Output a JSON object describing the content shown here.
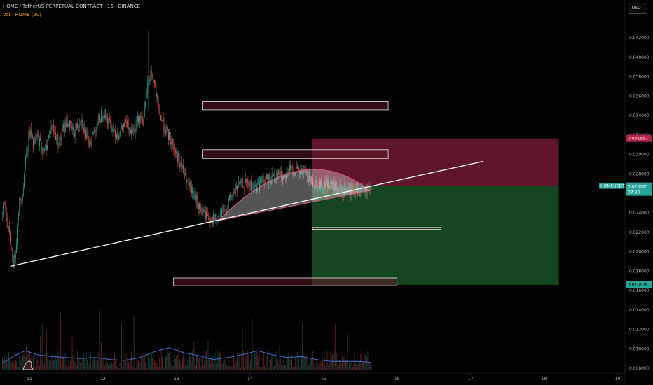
{
  "header": {
    "title": "HOME / TetherUS PERPETUAL CONTRACT · 15 · BINANCE",
    "volume_label": "Vol · HOME (20)",
    "currency_button": "USDT"
  },
  "colors": {
    "background": "#000000",
    "axis_text": "#b2b5be",
    "stop_zone": "#7f1d36",
    "target_zone": "#1e5e2a",
    "trendline": "#ffffff",
    "arc": "#e0557a",
    "volume_ma": "#3f6fd8",
    "candle_up": "#26a69a",
    "candle_down": "#ef5350"
  },
  "price_tags": {
    "stop": {
      "value": "0.031657",
      "color": "#b7234a"
    },
    "upper": {
      "value": "0.026791",
      "color": "#3a3d46"
    },
    "entry_symbol": "HOMEUSDT.P",
    "entry_value": "0.026765",
    "entry_timer": "07:20",
    "entry_color": "#26a69a",
    "target": {
      "value": "0.016578",
      "color": "#26a69a"
    }
  },
  "chart_data": {
    "type": "candlestick",
    "title": "HOME / TetherUS PERPETUAL CONTRACT · 15 · BINANCE",
    "x_ticks": [
      "11",
      "12",
      "13",
      "14",
      "15",
      "16",
      "17",
      "18",
      "19"
    ],
    "xlim": [
      10.6,
      19.1
    ],
    "y_ticks": [
      "0.042000",
      "0.040000",
      "0.038000",
      "0.036000",
      "0.034000",
      "0.032000",
      "0.030000",
      "0.028000",
      "0.026000",
      "0.024000",
      "0.022000",
      "0.020000",
      "0.018000",
      "0.016000",
      "0.014000",
      "0.012000",
      "0.010000",
      "0.008000"
    ],
    "ylim": [
      0.0075,
      0.0436
    ],
    "price_path": [
      [
        10.63,
        0.0238
      ],
      [
        10.66,
        0.0252
      ],
      [
        10.7,
        0.0225
      ],
      [
        10.74,
        0.021
      ],
      [
        10.78,
        0.0186
      ],
      [
        10.81,
        0.0205
      ],
      [
        10.85,
        0.0245
      ],
      [
        10.9,
        0.026
      ],
      [
        10.95,
        0.03
      ],
      [
        11.0,
        0.0325
      ],
      [
        11.05,
        0.0308
      ],
      [
        11.1,
        0.0318
      ],
      [
        11.2,
        0.0302
      ],
      [
        11.3,
        0.033
      ],
      [
        11.4,
        0.0312
      ],
      [
        11.5,
        0.0335
      ],
      [
        11.6,
        0.0322
      ],
      [
        11.7,
        0.0338
      ],
      [
        11.8,
        0.031
      ],
      [
        11.9,
        0.0328
      ],
      [
        12.0,
        0.0345
      ],
      [
        12.1,
        0.033
      ],
      [
        12.2,
        0.032
      ],
      [
        12.3,
        0.0332
      ],
      [
        12.4,
        0.0325
      ],
      [
        12.5,
        0.034
      ],
      [
        12.55,
        0.0335
      ],
      [
        12.6,
        0.037
      ],
      [
        12.65,
        0.0385
      ],
      [
        12.7,
        0.0372
      ],
      [
        12.75,
        0.0345
      ],
      [
        12.85,
        0.0325
      ],
      [
        12.95,
        0.031
      ],
      [
        13.05,
        0.029
      ],
      [
        13.15,
        0.027
      ],
      [
        13.25,
        0.0255
      ],
      [
        13.35,
        0.024
      ],
      [
        13.45,
        0.0235
      ],
      [
        13.55,
        0.0232
      ],
      [
        13.65,
        0.0242
      ],
      [
        13.75,
        0.0258
      ],
      [
        13.85,
        0.0268
      ],
      [
        13.95,
        0.027
      ],
      [
        14.05,
        0.0265
      ],
      [
        14.15,
        0.0272
      ],
      [
        14.25,
        0.0275
      ],
      [
        14.35,
        0.028
      ],
      [
        14.45,
        0.0278
      ],
      [
        14.55,
        0.0285
      ],
      [
        14.65,
        0.0282
      ],
      [
        14.75,
        0.028
      ],
      [
        14.85,
        0.0272
      ],
      [
        14.95,
        0.0268
      ],
      [
        15.05,
        0.027
      ],
      [
        15.15,
        0.0266
      ],
      [
        15.25,
        0.0262
      ],
      [
        15.35,
        0.026
      ],
      [
        15.45,
        0.0262
      ],
      [
        15.55,
        0.0264
      ],
      [
        15.65,
        0.0267
      ]
    ],
    "volume_ma": [
      [
        10.63,
        0.0085
      ],
      [
        10.8,
        0.0093
      ],
      [
        10.95,
        0.0098
      ],
      [
        11.1,
        0.0094
      ],
      [
        11.3,
        0.0092
      ],
      [
        11.5,
        0.0091
      ],
      [
        11.7,
        0.009
      ],
      [
        11.9,
        0.0091
      ],
      [
        12.1,
        0.0089
      ],
      [
        12.3,
        0.0088
      ],
      [
        12.5,
        0.0091
      ],
      [
        12.7,
        0.0097
      ],
      [
        12.9,
        0.0101
      ],
      [
        13.1,
        0.0096
      ],
      [
        13.3,
        0.0093
      ],
      [
        13.5,
        0.0089
      ],
      [
        13.7,
        0.0091
      ],
      [
        13.9,
        0.0094
      ],
      [
        14.1,
        0.0098
      ],
      [
        14.3,
        0.0094
      ],
      [
        14.5,
        0.0091
      ],
      [
        14.7,
        0.0092
      ],
      [
        14.9,
        0.0089
      ],
      [
        15.1,
        0.0087
      ],
      [
        15.3,
        0.0087
      ],
      [
        15.5,
        0.0087
      ],
      [
        15.65,
        0.0086
      ]
    ],
    "trendline": {
      "start": [
        10.74,
        0.0185
      ],
      "end": [
        17.17,
        0.0293
      ]
    },
    "arc": {
      "start": [
        13.57,
        0.0232
      ],
      "peak": [
        14.7,
        0.0294
      ],
      "end": [
        15.63,
        0.0263
      ]
    },
    "position": {
      "type": "short",
      "entry": 0.026765,
      "stop": 0.031657,
      "target": 0.016578,
      "x_start": 14.85,
      "x_end": 18.2
    },
    "zones": [
      {
        "x": [
          13.36,
          15.88
        ],
        "y": [
          0.0346,
          0.0355
        ]
      },
      {
        "x": [
          13.36,
          15.88
        ],
        "y": [
          0.0296,
          0.0305
        ]
      },
      {
        "x": [
          14.85,
          16.6
        ],
        "y": [
          0.0223,
          0.0225
        ]
      },
      {
        "x": [
          12.96,
          16.0
        ],
        "y": [
          0.0165,
          0.0173
        ]
      }
    ],
    "grid": false
  }
}
